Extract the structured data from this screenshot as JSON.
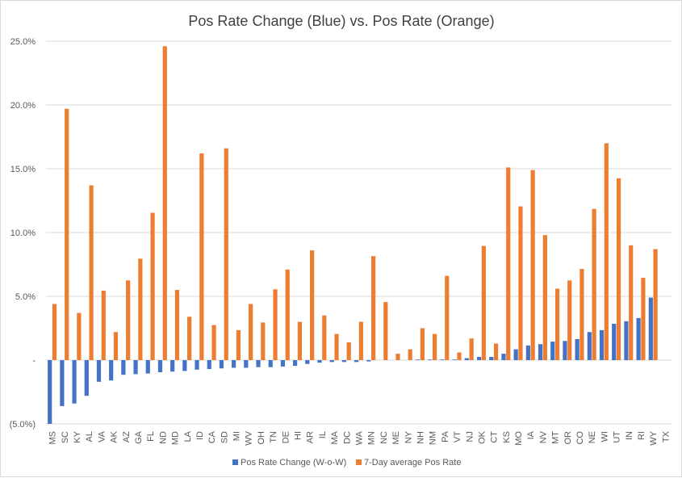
{
  "chart_data": {
    "type": "bar",
    "title": "Pos Rate Change (Blue) vs. Pos Rate (Orange)",
    "xlabel": "",
    "ylabel": "",
    "ylim": [
      -5.0,
      25.0
    ],
    "yticks": [
      25.0,
      20.0,
      15.0,
      10.0,
      5.0,
      0.0,
      -5.0
    ],
    "ytick_labels": [
      "25.0%",
      "20.0%",
      "15.0%",
      "10.0%",
      "5.0%",
      "-",
      "(5.0%)"
    ],
    "grid": true,
    "legend_position": "bottom",
    "categories": [
      "MS",
      "SC",
      "KY",
      "AL",
      "VA",
      "AK",
      "AZ",
      "GA",
      "FL",
      "ND",
      "MD",
      "LA",
      "ID",
      "CA",
      "SD",
      "MI",
      "WV",
      "OH",
      "TN",
      "DE",
      "HI",
      "AR",
      "IL",
      "MA",
      "DC",
      "WA",
      "MN",
      "NC",
      "ME",
      "NY",
      "NH",
      "NM",
      "PA",
      "VT",
      "NJ",
      "OK",
      "CT",
      "KS",
      "MO",
      "IA",
      "NV",
      "MT",
      "OR",
      "CO",
      "NE",
      "WI",
      "UT",
      "IN",
      "RI",
      "WY",
      "TX"
    ],
    "series": [
      {
        "name": "Pos Rate Change (W-o-W)",
        "color": "#4472c4",
        "values": [
          -5.0,
          -3.6,
          -3.4,
          -2.8,
          -1.7,
          -1.6,
          -1.15,
          -1.1,
          -1.05,
          -0.95,
          -0.9,
          -0.85,
          -0.75,
          -0.7,
          -0.65,
          -0.6,
          -0.6,
          -0.55,
          -0.55,
          -0.5,
          -0.45,
          -0.3,
          -0.2,
          -0.15,
          -0.15,
          -0.15,
          -0.1,
          0.0,
          0.0,
          0.0,
          0.05,
          0.05,
          0.05,
          0.05,
          0.15,
          0.25,
          0.25,
          0.5,
          0.85,
          1.15,
          1.25,
          1.45,
          1.5,
          1.65,
          2.2,
          2.35,
          2.85,
          3.05,
          3.3,
          4.9,
          0.0
        ]
      },
      {
        "name": "7-Day average Pos Rate",
        "color": "#ed7d31",
        "values": [
          4.4,
          19.7,
          3.7,
          13.7,
          5.45,
          2.2,
          6.25,
          7.95,
          11.55,
          24.6,
          5.5,
          3.4,
          16.2,
          2.75,
          16.6,
          2.35,
          4.4,
          2.95,
          5.55,
          7.1,
          3.0,
          8.6,
          3.5,
          2.05,
          1.4,
          3.0,
          8.15,
          4.55,
          0.5,
          0.85,
          2.5,
          2.05,
          6.6,
          0.6,
          1.7,
          8.95,
          1.3,
          15.1,
          12.05,
          14.9,
          9.8,
          5.6,
          6.25,
          7.15,
          11.85,
          17.0,
          14.25,
          9.0,
          6.45,
          8.7,
          0.0
        ]
      }
    ]
  }
}
